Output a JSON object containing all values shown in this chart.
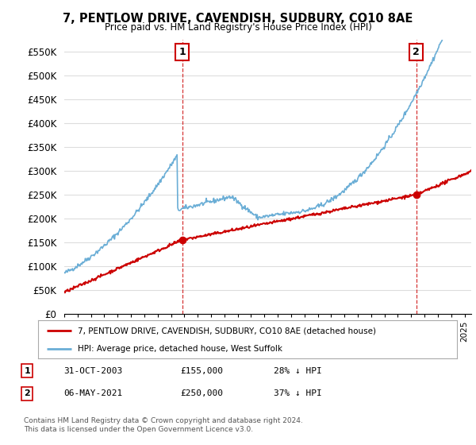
{
  "title": "7, PENTLOW DRIVE, CAVENDISH, SUDBURY, CO10 8AE",
  "subtitle": "Price paid vs. HM Land Registry's House Price Index (HPI)",
  "sale1_date": "31-OCT-2003",
  "sale1_price": 155000,
  "sale1_label": "1",
  "sale1_hpi_pct": "28% ↓ HPI",
  "sale2_date": "06-MAY-2021",
  "sale2_price": 250000,
  "sale2_label": "2",
  "sale2_hpi_pct": "37% ↓ HPI",
  "legend_line1": "7, PENTLOW DRIVE, CAVENDISH, SUDBURY, CO10 8AE (detached house)",
  "legend_line2": "HPI: Average price, detached house, West Suffolk",
  "footer": "Contains HM Land Registry data © Crown copyright and database right 2024.\nThis data is licensed under the Open Government Licence v3.0.",
  "hpi_color": "#6baed6",
  "price_color": "#cc0000",
  "background_color": "#ffffff",
  "grid_color": "#dddddd",
  "ylim": [
    0,
    575000
  ],
  "yticks": [
    0,
    50000,
    100000,
    150000,
    200000,
    250000,
    300000,
    350000,
    400000,
    450000,
    500000,
    550000
  ],
  "sale1_x_year": 2003.83,
  "sale2_x_year": 2021.37,
  "xmin": 1995,
  "xmax": 2025.5
}
